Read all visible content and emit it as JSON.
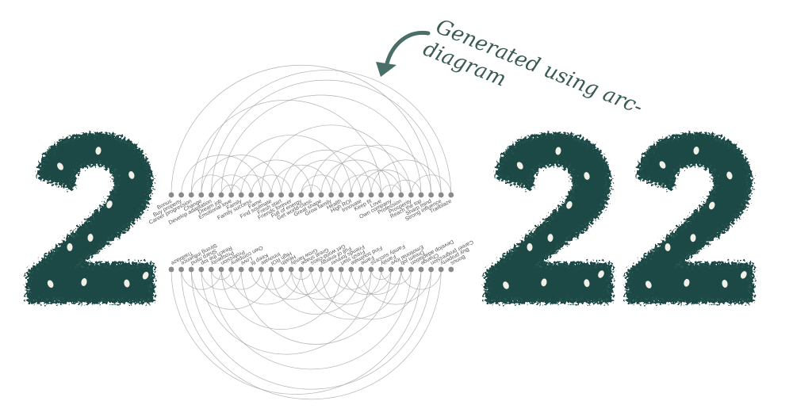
{
  "annotation": {
    "text_line1": "Generated using arc-",
    "text_line2": "diagram"
  },
  "digits": [
    "2",
    "2",
    "2"
  ],
  "colors": {
    "foliage": "#1f4a44",
    "foliage_light": "#3d6b63",
    "ornament": "#f2f0e6",
    "arc": "#9a9a9a",
    "node": "#8a8a8a",
    "annotation": "#3a5a55"
  },
  "top_nodes": [
    "Bonus",
    "Buy property",
    "Career progression",
    "Change",
    "Develop adaptation",
    "Dream job",
    "Emotional love",
    "Family",
    "Family success",
    "Fame",
    "Find soulmate",
    "Fresh start",
    "Friends forever",
    "Full of energy",
    "Get world-class",
    "Great shape",
    "Grow family",
    "Health",
    "High ROI",
    "Innovate",
    "Keep fit",
    "Love",
    "Own company",
    "Profession",
    "Prosperity",
    "Reach the top",
    "Sharp mind",
    "Strong influence",
    "Trailblaze"
  ],
  "bottom_nodes": [
    "Trailblaze",
    "Strong influence",
    "Sharp mind",
    "Reach the top",
    "Prosperity",
    "Profession",
    "Own company",
    "Love",
    "Keep fit",
    "Innovate",
    "High ROI",
    "Health",
    "Grow family",
    "Great shape",
    "Get world-class",
    "Full of energy",
    "Friends forever",
    "Fresh start",
    "Find soulmate",
    "Fame",
    "Family success",
    "Family",
    "Emotional love",
    "Dream job",
    "Develop adaptation",
    "Change",
    "Career progression",
    "Buy property",
    "Bonus"
  ],
  "top_links": [
    [
      3,
      28
    ],
    [
      4,
      27
    ],
    [
      5,
      25
    ],
    [
      2,
      21
    ],
    [
      6,
      18
    ],
    [
      7,
      14
    ],
    [
      8,
      12
    ],
    [
      10,
      16
    ],
    [
      11,
      20
    ],
    [
      13,
      17
    ],
    [
      15,
      22
    ],
    [
      9,
      23
    ],
    [
      19,
      24
    ],
    [
      0,
      26
    ],
    [
      1,
      9
    ],
    [
      12,
      19
    ],
    [
      16,
      26
    ],
    [
      20,
      27
    ],
    [
      14,
      24
    ],
    [
      17,
      21
    ],
    [
      3,
      11
    ],
    [
      6,
      10
    ],
    [
      22,
      25
    ],
    [
      4,
      8
    ],
    [
      5,
      7
    ],
    [
      13,
      15
    ],
    [
      18,
      23
    ],
    [
      2,
      6
    ],
    [
      24,
      28
    ],
    [
      21,
      23
    ]
  ],
  "bottom_links": [
    [
      1,
      27
    ],
    [
      2,
      26
    ],
    [
      4,
      24
    ],
    [
      3,
      20
    ],
    [
      5,
      17
    ],
    [
      6,
      13
    ],
    [
      8,
      12
    ],
    [
      9,
      15
    ],
    [
      10,
      19
    ],
    [
      11,
      16
    ],
    [
      14,
      21
    ],
    [
      7,
      22
    ],
    [
      18,
      23
    ],
    [
      0,
      25
    ],
    [
      12,
      18
    ],
    [
      15,
      25
    ],
    [
      19,
      26
    ],
    [
      13,
      23
    ],
    [
      16,
      20
    ],
    [
      2,
      10
    ],
    [
      5,
      9
    ],
    [
      21,
      24
    ],
    [
      3,
      7
    ],
    [
      4,
      6
    ],
    [
      12,
      14
    ],
    [
      17,
      22
    ],
    [
      1,
      5
    ],
    [
      23,
      27
    ],
    [
      20,
      22
    ]
  ]
}
